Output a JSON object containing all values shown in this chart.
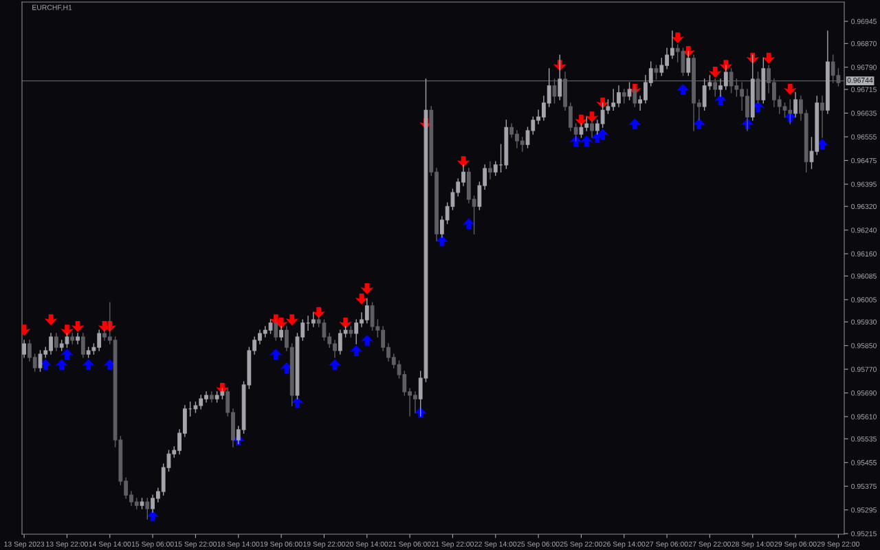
{
  "chart_data": {
    "type": "candlestick",
    "title": "EURCHF,H1",
    "categories": [
      "13 Sep 2023",
      null,
      null,
      null,
      null,
      null,
      null,
      null,
      "13 Sep 22:00",
      null,
      null,
      null,
      null,
      null,
      null,
      null,
      "14 Sep 14:00",
      null,
      null,
      null,
      null,
      null,
      null,
      null,
      "15 Sep 06:00",
      null,
      null,
      null,
      null,
      null,
      null,
      null,
      "15 Sep 22:00",
      null,
      null,
      null,
      null,
      null,
      null,
      null,
      "18 Sep 14:00",
      null,
      null,
      null,
      null,
      null,
      null,
      null,
      "19 Sep 06:00",
      null,
      null,
      null,
      null,
      null,
      null,
      null,
      "19 Sep 22:00",
      null,
      null,
      null,
      null,
      null,
      null,
      null,
      "20 Sep 14:00",
      null,
      null,
      null,
      null,
      null,
      null,
      null,
      "21 Sep 06:00",
      null,
      null,
      null,
      null,
      null,
      null,
      null,
      "21 Sep 22:00",
      null,
      null,
      null,
      null,
      null,
      null,
      null,
      "22 Sep 14:00",
      null,
      null,
      null,
      null,
      null,
      null,
      null,
      "25 Sep 06:00",
      null,
      null,
      null,
      null,
      null,
      null,
      null,
      "25 Sep 22:00",
      null,
      null,
      null,
      null,
      null,
      null,
      null,
      "26 Sep 14:00",
      null,
      null,
      null,
      null,
      null,
      null,
      null,
      "27 Sep 06:00",
      null,
      null,
      null,
      null,
      null,
      null,
      null,
      "27 Sep 22:00",
      null,
      null,
      null,
      null,
      null,
      null,
      null,
      "28 Sep 14:00",
      null,
      null,
      null,
      null,
      null,
      null,
      null,
      "29 Sep 06:00",
      null,
      null,
      null,
      null,
      null,
      null,
      null,
      "29 Sep 22:00"
    ],
    "ohlc": [
      [
        0.95821,
        0.95868,
        0.9581,
        0.95856
      ],
      [
        0.95856,
        0.95868,
        0.95798,
        0.9581
      ],
      [
        0.9581,
        0.95821,
        0.95763,
        0.95775
      ],
      [
        0.95775,
        0.95833,
        0.95763,
        0.95821
      ],
      [
        0.95821,
        0.95844,
        0.9581,
        0.95833
      ],
      [
        0.95833,
        0.95891,
        0.95821,
        0.95879
      ],
      [
        0.95879,
        0.95891,
        0.95833,
        0.95844
      ],
      [
        0.95844,
        0.95868,
        0.95833,
        0.95856
      ],
      [
        0.95856,
        0.95891,
        0.95844,
        0.95879
      ],
      [
        0.95879,
        0.95891,
        0.95856,
        0.95868
      ],
      [
        0.95868,
        0.95891,
        0.95856,
        0.95879
      ],
      [
        0.95879,
        0.95891,
        0.9581,
        0.95821
      ],
      [
        0.95821,
        0.95844,
        0.9581,
        0.95833
      ],
      [
        0.95833,
        0.95856,
        0.95821,
        0.95844
      ],
      [
        0.95844,
        0.95902,
        0.95833,
        0.95891
      ],
      [
        0.95891,
        0.95902,
        0.95868,
        0.95879
      ],
      [
        0.95879,
        0.95995,
        0.95856,
        0.95868
      ],
      [
        0.95868,
        0.95879,
        0.95508,
        0.95531
      ],
      [
        0.95531,
        0.95543,
        0.9538,
        0.95392
      ],
      [
        0.95392,
        0.95403,
        0.95334,
        0.95345
      ],
      [
        0.95345,
        0.95357,
        0.9531,
        0.95322
      ],
      [
        0.95322,
        0.95334,
        0.95299,
        0.9531
      ],
      [
        0.9531,
        0.95334,
        0.95299,
        0.95322
      ],
      [
        0.95322,
        0.95334,
        0.95264,
        0.95299
      ],
      [
        0.95299,
        0.95345,
        0.95287,
        0.95334
      ],
      [
        0.95334,
        0.95368,
        0.95322,
        0.95357
      ],
      [
        0.95357,
        0.9545,
        0.95345,
        0.95438
      ],
      [
        0.95438,
        0.95496,
        0.95426,
        0.95484
      ],
      [
        0.95484,
        0.95508,
        0.95473,
        0.95496
      ],
      [
        0.95496,
        0.95566,
        0.95484,
        0.95554
      ],
      [
        0.95554,
        0.95647,
        0.95543,
        0.95636
      ],
      [
        0.95636,
        0.95659,
        0.95612,
        0.95636
      ],
      [
        0.95636,
        0.95659,
        0.95624,
        0.95647
      ],
      [
        0.95647,
        0.95682,
        0.95636,
        0.9567
      ],
      [
        0.9567,
        0.95694,
        0.95659,
        0.95682
      ],
      [
        0.95682,
        0.95694,
        0.95659,
        0.9567
      ],
      [
        0.9567,
        0.95694,
        0.95659,
        0.95682
      ],
      [
        0.95682,
        0.95705,
        0.9567,
        0.95694
      ],
      [
        0.95694,
        0.95705,
        0.95612,
        0.95624
      ],
      [
        0.95624,
        0.95636,
        0.95508,
        0.95531
      ],
      [
        0.95531,
        0.95577,
        0.95519,
        0.95566
      ],
      [
        0.95566,
        0.95728,
        0.95554,
        0.95717
      ],
      [
        0.95717,
        0.95844,
        0.95705,
        0.95833
      ],
      [
        0.95833,
        0.95879,
        0.95821,
        0.95868
      ],
      [
        0.95868,
        0.95902,
        0.95856,
        0.95891
      ],
      [
        0.95891,
        0.95914,
        0.95879,
        0.95902
      ],
      [
        0.95902,
        0.95937,
        0.95891,
        0.95926
      ],
      [
        0.95926,
        0.95937,
        0.95868,
        0.95879
      ],
      [
        0.95879,
        0.95914,
        0.95868,
        0.95902
      ],
      [
        0.95902,
        0.95914,
        0.95833,
        0.95844
      ],
      [
        0.95844,
        0.95856,
        0.95647,
        0.95682
      ],
      [
        0.95682,
        0.95891,
        0.9567,
        0.95879
      ],
      [
        0.95879,
        0.95937,
        0.95868,
        0.95926
      ],
      [
        0.95926,
        0.95949,
        0.95902,
        0.95926
      ],
      [
        0.95926,
        0.95961,
        0.95914,
        0.95937
      ],
      [
        0.95937,
        0.95949,
        0.95914,
        0.95926
      ],
      [
        0.95926,
        0.95937,
        0.95868,
        0.95879
      ],
      [
        0.95879,
        0.95891,
        0.95844,
        0.95856
      ],
      [
        0.95856,
        0.95868,
        0.9581,
        0.95833
      ],
      [
        0.95833,
        0.95902,
        0.95821,
        0.95891
      ],
      [
        0.95891,
        0.95914,
        0.95879,
        0.95902
      ],
      [
        0.95902,
        0.95914,
        0.95879,
        0.95891
      ],
      [
        0.95891,
        0.95937,
        0.95856,
        0.95926
      ],
      [
        0.95926,
        0.95961,
        0.95914,
        0.95937
      ],
      [
        0.95937,
        0.96007,
        0.95926,
        0.95984
      ],
      [
        0.95984,
        0.95995,
        0.95902,
        0.95914
      ],
      [
        0.95914,
        0.95937,
        0.95879,
        0.95902
      ],
      [
        0.95902,
        0.95914,
        0.95833,
        0.95844
      ],
      [
        0.95844,
        0.95856,
        0.95798,
        0.9581
      ],
      [
        0.9581,
        0.95821,
        0.95775,
        0.95786
      ],
      [
        0.95786,
        0.95798,
        0.9574,
        0.95752
      ],
      [
        0.95752,
        0.95763,
        0.95682,
        0.95694
      ],
      [
        0.95694,
        0.95705,
        0.95612,
        0.95682
      ],
      [
        0.95682,
        0.95694,
        0.95624,
        0.9567
      ],
      [
        0.9567,
        0.95763,
        0.95612,
        0.9574
      ],
      [
        0.9574,
        0.9675,
        0.95728,
        0.96645
      ],
      [
        0.96645,
        0.96657,
        0.96425,
        0.96436
      ],
      [
        0.96436,
        0.96448,
        0.96204,
        0.96227
      ],
      [
        0.96227,
        0.96286,
        0.96216,
        0.96274
      ],
      [
        0.96274,
        0.96332,
        0.96262,
        0.9632
      ],
      [
        0.9632,
        0.96378,
        0.96309,
        0.96367
      ],
      [
        0.96367,
        0.96413,
        0.96355,
        0.96402
      ],
      [
        0.96402,
        0.9646,
        0.9639,
        0.96436
      ],
      [
        0.96436,
        0.96448,
        0.96332,
        0.96344
      ],
      [
        0.96344,
        0.96355,
        0.96227,
        0.9632
      ],
      [
        0.9632,
        0.96402,
        0.96309,
        0.9639
      ],
      [
        0.9639,
        0.9646,
        0.96378,
        0.96448
      ],
      [
        0.96448,
        0.96471,
        0.96413,
        0.96436
      ],
      [
        0.96436,
        0.96471,
        0.96425,
        0.9646
      ],
      [
        0.9646,
        0.96529,
        0.96436,
        0.9646
      ],
      [
        0.9646,
        0.96611,
        0.96448,
        0.96587
      ],
      [
        0.96587,
        0.96599,
        0.96553,
        0.96564
      ],
      [
        0.96564,
        0.96576,
        0.96518,
        0.96541
      ],
      [
        0.96541,
        0.96553,
        0.96506,
        0.96529
      ],
      [
        0.96529,
        0.96587,
        0.96518,
        0.96576
      ],
      [
        0.96576,
        0.96622,
        0.96564,
        0.96611
      ],
      [
        0.96611,
        0.96645,
        0.96599,
        0.96622
      ],
      [
        0.96622,
        0.96692,
        0.96611,
        0.96669
      ],
      [
        0.96669,
        0.96785,
        0.96657,
        0.96727
      ],
      [
        0.96727,
        0.9675,
        0.96669,
        0.96692
      ],
      [
        0.96692,
        0.96831,
        0.9668,
        0.9675
      ],
      [
        0.9675,
        0.96773,
        0.96645,
        0.96657
      ],
      [
        0.96657,
        0.96669,
        0.96576,
        0.96587
      ],
      [
        0.96587,
        0.96599,
        0.96541,
        0.96564
      ],
      [
        0.96564,
        0.96599,
        0.96553,
        0.96587
      ],
      [
        0.96587,
        0.96622,
        0.96576,
        0.96599
      ],
      [
        0.96599,
        0.96611,
        0.96553,
        0.96576
      ],
      [
        0.96576,
        0.96611,
        0.96564,
        0.96599
      ],
      [
        0.96599,
        0.96669,
        0.96587,
        0.96645
      ],
      [
        0.96645,
        0.9668,
        0.96634,
        0.96657
      ],
      [
        0.96657,
        0.96715,
        0.96645,
        0.96669
      ],
      [
        0.96669,
        0.96727,
        0.96657,
        0.96704
      ],
      [
        0.96704,
        0.96715,
        0.96669,
        0.96692
      ],
      [
        0.96692,
        0.96738,
        0.9668,
        0.96715
      ],
      [
        0.96715,
        0.96727,
        0.96657,
        0.96669
      ],
      [
        0.96669,
        0.96692,
        0.96645,
        0.9668
      ],
      [
        0.9668,
        0.96762,
        0.96669,
        0.96738
      ],
      [
        0.96738,
        0.96808,
        0.96727,
        0.96785
      ],
      [
        0.96785,
        0.96796,
        0.9675,
        0.96773
      ],
      [
        0.96773,
        0.9682,
        0.96762,
        0.96796
      ],
      [
        0.96796,
        0.96854,
        0.96785,
        0.96831
      ],
      [
        0.96831,
        0.96912,
        0.9682,
        0.96854
      ],
      [
        0.96854,
        0.96866,
        0.96808,
        0.96843
      ],
      [
        0.96843,
        0.96854,
        0.96762,
        0.96773
      ],
      [
        0.96773,
        0.96843,
        0.96762,
        0.9682
      ],
      [
        0.9682,
        0.96831,
        0.96576,
        0.96669
      ],
      [
        0.96669,
        0.9668,
        0.96611,
        0.96657
      ],
      [
        0.96657,
        0.9675,
        0.96645,
        0.96727
      ],
      [
        0.96727,
        0.96762,
        0.96715,
        0.96738
      ],
      [
        0.96738,
        0.9675,
        0.96692,
        0.96715
      ],
      [
        0.96715,
        0.9675,
        0.96692,
        0.96727
      ],
      [
        0.96727,
        0.96796,
        0.96715,
        0.96773
      ],
      [
        0.96773,
        0.96785,
        0.96704,
        0.96727
      ],
      [
        0.96727,
        0.9675,
        0.96692,
        0.96715
      ],
      [
        0.96715,
        0.96738,
        0.96645,
        0.96692
      ],
      [
        0.96692,
        0.96715,
        0.96576,
        0.96622
      ],
      [
        0.96622,
        0.96831,
        0.96611,
        0.9675
      ],
      [
        0.9675,
        0.96773,
        0.96669,
        0.9668
      ],
      [
        0.9668,
        0.9682,
        0.96669,
        0.96785
      ],
      [
        0.96785,
        0.96796,
        0.96704,
        0.96738
      ],
      [
        0.96738,
        0.9675,
        0.96657,
        0.9668
      ],
      [
        0.9668,
        0.96692,
        0.96634,
        0.96657
      ],
      [
        0.96657,
        0.96669,
        0.96622,
        0.96645
      ],
      [
        0.96645,
        0.9668,
        0.96599,
        0.96634
      ],
      [
        0.96634,
        0.96704,
        0.96622,
        0.9668
      ],
      [
        0.9668,
        0.96692,
        0.96611,
        0.96634
      ],
      [
        0.96634,
        0.96645,
        0.96436,
        0.96471
      ],
      [
        0.96471,
        0.96553,
        0.96448,
        0.96506
      ],
      [
        0.96506,
        0.96692,
        0.96495,
        0.96669
      ],
      [
        0.96669,
        0.96692,
        0.96553,
        0.96645
      ],
      [
        0.96645,
        0.96912,
        0.96634,
        0.96808
      ],
      [
        0.96808,
        0.96831,
        0.96738,
        0.96762
      ],
      [
        0.96762,
        0.96785,
        0.96727,
        0.96738
      ]
    ],
    "colors": [
      "#a4a4ac",
      "#5e5e64",
      "#5e5e64",
      "#a4a4ac",
      "#a4a4ac",
      "#a4a4ac",
      "#5e5e64",
      "#a4a4ac",
      "#a4a4ac",
      "#5e5e64",
      "#a4a4ac",
      "#5e5e64",
      "#a4a4ac",
      "#a4a4ac",
      "#a4a4ac",
      "#5e5e64",
      "#5e5e64",
      "#5e5e64",
      "#5e5e64",
      "#5e5e64",
      "#5e5e64",
      "#5e5e64",
      "#a4a4ac",
      "#5e5e64",
      "#a4a4ac",
      "#a4a4ac",
      "#a4a4ac",
      "#a4a4ac",
      "#a4a4ac",
      "#a4a4ac",
      "#a4a4ac",
      "#a4a4ac",
      "#a4a4ac",
      "#a4a4ac",
      "#a4a4ac",
      "#5e5e64",
      "#a4a4ac",
      "#a4a4ac",
      "#5e5e64",
      "#5e5e64",
      "#a4a4ac",
      "#a4a4ac",
      "#a4a4ac",
      "#a4a4ac",
      "#a4a4ac",
      "#a4a4ac",
      "#a4a4ac",
      "#5e5e64",
      "#a4a4ac",
      "#5e5e64",
      "#5e5e64",
      "#a4a4ac",
      "#a4a4ac",
      "#a4a4ac",
      "#a4a4ac",
      "#5e5e64",
      "#5e5e64",
      "#5e5e64",
      "#5e5e64",
      "#a4a4ac",
      "#a4a4ac",
      "#5e5e64",
      "#a4a4ac",
      "#a4a4ac",
      "#a4a4ac",
      "#5e5e64",
      "#5e5e64",
      "#5e5e64",
      "#5e5e64",
      "#5e5e64",
      "#5e5e64",
      "#5e5e64",
      "#5e5e64",
      "#5e5e64",
      "#a4a4ac",
      "#a4a4ac",
      "#5e5e64",
      "#5e5e64",
      "#a4a4ac",
      "#a4a4ac",
      "#a4a4ac",
      "#a4a4ac",
      "#a4a4ac",
      "#5e5e64",
      "#5e5e64",
      "#a4a4ac",
      "#a4a4ac",
      "#5e5e64",
      "#a4a4ac",
      "#a4a4ac",
      "#a4a4ac",
      "#5e5e64",
      "#5e5e64",
      "#5e5e64",
      "#a4a4ac",
      "#a4a4ac",
      "#a4a4ac",
      "#a4a4ac",
      "#a4a4ac",
      "#5e5e64",
      "#a4a4ac",
      "#5e5e64",
      "#5e5e64",
      "#5e5e64",
      "#a4a4ac",
      "#a4a4ac",
      "#5e5e64",
      "#a4a4ac",
      "#a4a4ac",
      "#a4a4ac",
      "#a4a4ac",
      "#a4a4ac",
      "#5e5e64",
      "#a4a4ac",
      "#5e5e64",
      "#a4a4ac",
      "#a4a4ac",
      "#a4a4ac",
      "#5e5e64",
      "#a4a4ac",
      "#a4a4ac",
      "#a4a4ac",
      "#5e5e64",
      "#5e5e64",
      "#a4a4ac",
      "#5e5e64",
      "#5e5e64",
      "#a4a4ac",
      "#a4a4ac",
      "#5e5e64",
      "#a4a4ac",
      "#a4a4ac",
      "#5e5e64",
      "#5e5e64",
      "#5e5e64",
      "#5e5e64",
      "#a4a4ac",
      "#5e5e64",
      "#a4a4ac",
      "#5e5e64",
      "#5e5e64",
      "#5e5e64",
      "#5e5e64",
      "#5e5e64",
      "#a4a4ac",
      "#5e5e64",
      "#5e5e64",
      "#a4a4ac",
      "#a4a4ac",
      "#5e5e64",
      "#a4a4ac",
      "#5e5e64",
      "#5e5e64"
    ],
    "series": [
      {
        "type": "scatter",
        "marker": "triangle",
        "color": "#ff0000",
        "values": [
          0.95902,
          null,
          null,
          null,
          null,
          0.95937,
          null,
          null,
          0.95902,
          null,
          0.95914,
          null,
          null,
          null,
          null,
          0.95914,
          0.95914,
          null,
          null,
          null,
          null,
          null,
          null,
          null,
          null,
          null,
          null,
          null,
          null,
          null,
          null,
          null,
          null,
          null,
          null,
          null,
          null,
          0.95705,
          null,
          null,
          null,
          null,
          null,
          null,
          null,
          null,
          null,
          0.95937,
          0.95926,
          null,
          0.95937,
          null,
          null,
          null,
          null,
          0.95961,
          null,
          null,
          null,
          null,
          0.95926,
          null,
          null,
          0.96007,
          0.96042,
          null,
          null,
          null,
          null,
          null,
          null,
          null,
          null,
          null,
          null,
          0.96599,
          null,
          null,
          null,
          null,
          null,
          null,
          0.96471,
          null,
          null,
          null,
          null,
          null,
          null,
          null,
          null,
          null,
          null,
          null,
          null,
          null,
          null,
          null,
          null,
          null,
          0.96796,
          null,
          null,
          null,
          0.96611,
          null,
          0.96622,
          null,
          0.96669,
          null,
          null,
          null,
          null,
          null,
          0.96715,
          null,
          null,
          null,
          null,
          null,
          null,
          null,
          0.96889,
          null,
          0.96843,
          null,
          null,
          null,
          null,
          0.96773,
          null,
          0.96796,
          null,
          null,
          null,
          null,
          0.9682,
          null,
          null,
          0.9682,
          null,
          null,
          null,
          0.96715,
          null,
          null,
          null,
          null,
          null,
          null,
          null,
          null,
          null
        ]
      },
      {
        "type": "scatter",
        "marker": "triangle",
        "color": "#0000ff",
        "values": [
          null,
          null,
          null,
          null,
          0.95786,
          null,
          null,
          0.95786,
          0.95821,
          null,
          null,
          null,
          0.95786,
          null,
          null,
          null,
          0.95786,
          null,
          null,
          null,
          null,
          null,
          null,
          null,
          0.95275,
          null,
          null,
          null,
          null,
          null,
          null,
          null,
          null,
          null,
          null,
          null,
          null,
          null,
          null,
          null,
          0.95531,
          null,
          null,
          null,
          null,
          null,
          null,
          0.95821,
          null,
          0.95775,
          null,
          0.95659,
          null,
          null,
          null,
          null,
          null,
          null,
          0.95786,
          null,
          null,
          null,
          0.95833,
          null,
          0.95868,
          null,
          null,
          null,
          null,
          null,
          null,
          null,
          null,
          null,
          0.95624,
          null,
          null,
          null,
          0.96204,
          null,
          null,
          null,
          null,
          0.96262,
          null,
          null,
          null,
          null,
          null,
          null,
          null,
          null,
          null,
          null,
          null,
          null,
          null,
          null,
          null,
          null,
          null,
          null,
          null,
          0.96541,
          null,
          0.96541,
          null,
          0.96553,
          0.96564,
          null,
          null,
          null,
          null,
          null,
          0.96599,
          null,
          null,
          null,
          null,
          null,
          null,
          null,
          null,
          0.96715,
          null,
          null,
          0.96599,
          null,
          null,
          null,
          0.9668,
          null,
          null,
          null,
          null,
          0.96599,
          null,
          0.96657,
          null,
          null,
          null,
          null,
          null,
          0.96622,
          null,
          null,
          null,
          null,
          null,
          0.9653,
          null,
          null,
          null
        ]
      }
    ],
    "ylim": [
      0.95213,
      0.9701
    ],
    "yticks": [
      {
        "value": 0.96945,
        "label": "0.96945"
      },
      {
        "value": 0.9687,
        "label": "0.96870"
      },
      {
        "value": 0.9679,
        "label": "0.96790"
      },
      {
        "value": 0.96715,
        "label": "0.96715"
      },
      {
        "value": 0.96635,
        "label": "0.96635"
      },
      {
        "value": 0.96555,
        "label": "0.96555"
      },
      {
        "value": 0.96475,
        "label": "0.96475"
      },
      {
        "value": 0.96395,
        "label": "0.96395"
      },
      {
        "value": 0.9632,
        "label": "0.96320"
      },
      {
        "value": 0.9624,
        "label": "0.96240"
      },
      {
        "value": 0.9616,
        "label": "0.96160"
      },
      {
        "value": 0.96085,
        "label": "0.96085"
      },
      {
        "value": 0.96005,
        "label": "0.96005"
      },
      {
        "value": 0.9593,
        "label": "0.95930"
      },
      {
        "value": 0.9585,
        "label": "0.95850"
      },
      {
        "value": 0.9577,
        "label": "0.95770"
      },
      {
        "value": 0.9569,
        "label": "0.95690"
      },
      {
        "value": 0.9561,
        "label": "0.95610"
      },
      {
        "value": 0.95535,
        "label": "0.95535"
      },
      {
        "value": 0.95455,
        "label": "0.95455"
      },
      {
        "value": 0.95375,
        "label": "0.95375"
      },
      {
        "value": 0.95295,
        "label": "0.95295"
      },
      {
        "value": 0.95215,
        "label": "0.95215"
      }
    ],
    "ref_lines": [
      {
        "axis": "y",
        "value": 0.96744,
        "label": "0.96744",
        "color": "#5a5a60"
      }
    ]
  }
}
